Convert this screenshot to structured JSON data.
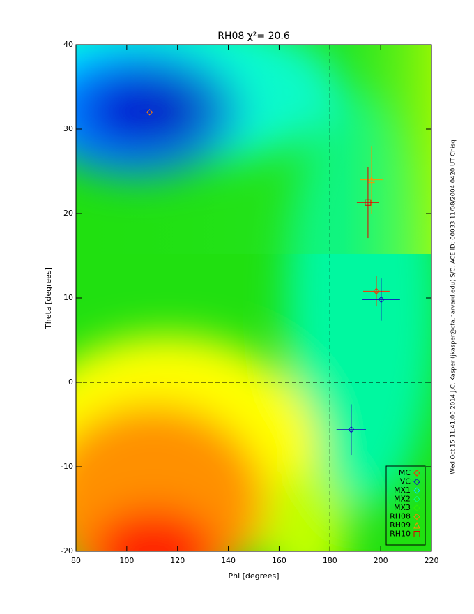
{
  "chart_data": {
    "type": "scatter",
    "title": "RH08 χ²= 20.6",
    "xlabel": "Phi [degrees]",
    "ylabel": "Theta [degrees]",
    "side_note": "Wed Oct 15 11:41:00 2014   J.C. Kasper (jkasper@cfa.harvard.edu)   S/C: ACE ID: 00033 11/08/2004  0420 UT Chisq",
    "xlim": [
      80,
      220
    ],
    "ylim": [
      -20,
      40
    ],
    "xticks": [
      80,
      100,
      120,
      140,
      160,
      180,
      200,
      220
    ],
    "yticks": [
      -20,
      -10,
      0,
      10,
      20,
      30,
      40
    ],
    "vlines": [
      180
    ],
    "hlines": [
      0
    ],
    "series": [
      {
        "name": "MC",
        "color": "#ff2a00",
        "marker": "diamond",
        "x": [
          198.3
        ],
        "y": [
          10.8
        ],
        "xerr": [
          5.2
        ],
        "yerr": [
          1.8
        ]
      },
      {
        "name": "VC",
        "color": "#1010c0",
        "marker": "diamond",
        "x": [
          200.2,
          188.4
        ],
        "y": [
          9.8,
          -5.6
        ],
        "xerr": [
          7.4,
          5.8
        ],
        "yerr": [
          2.5,
          3.0
        ]
      },
      {
        "name": "MX1",
        "color": "#00e0ff",
        "marker": "diamond",
        "x": [],
        "y": [],
        "xerr": [],
        "yerr": []
      },
      {
        "name": "MX2",
        "color": "#00ff90",
        "marker": "diamond",
        "x": [],
        "y": [],
        "xerr": [],
        "yerr": []
      },
      {
        "name": "MX3",
        "color": "#30f000",
        "marker": "diamond",
        "x": [],
        "y": [],
        "xerr": [],
        "yerr": []
      },
      {
        "name": "RH08",
        "color": "#ff8000",
        "marker": "diamond",
        "x": [
          109
        ],
        "y": [
          32
        ],
        "xerr": [
          0
        ],
        "yerr": [
          0
        ]
      },
      {
        "name": "RH09",
        "color": "#ff9000",
        "marker": "triangle",
        "x": [
          196.4
        ],
        "y": [
          24.0
        ],
        "xerr": [
          4.6
        ],
        "yerr": [
          4.0
        ]
      },
      {
        "name": "RH10",
        "color": "#e00000",
        "marker": "square",
        "x": [
          195.0
        ],
        "y": [
          21.3
        ],
        "xerr": [
          4.4
        ],
        "yerr": [
          4.2
        ]
      }
    ]
  }
}
